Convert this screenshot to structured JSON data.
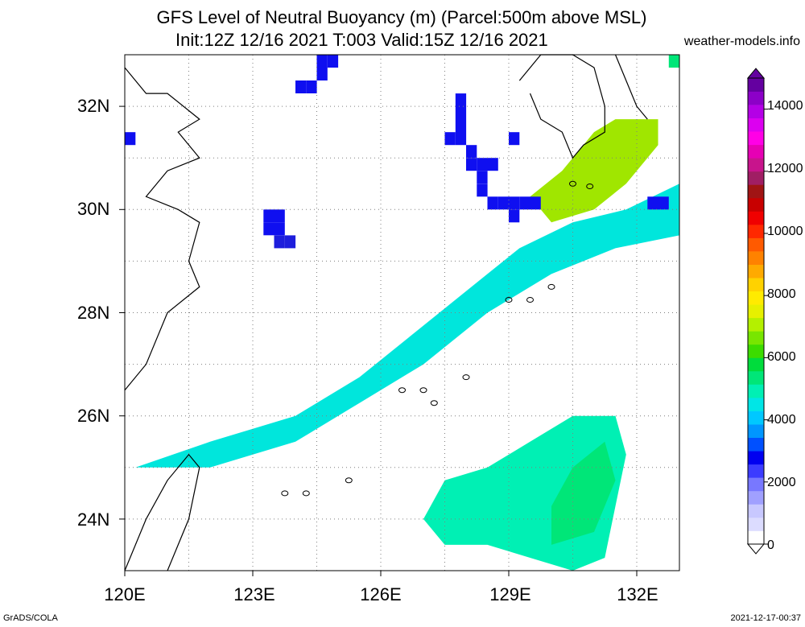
{
  "title_line1": "GFS Level of Neutral Buoyancy (m) (Parcel:500m above MSL)",
  "title_line2": "Init:12Z 12/16 2021 T:003 Valid:15Z 12/16 2021",
  "site": "weather-models.info",
  "footer_left": "GrADS/COLA",
  "footer_right": "2021-12-17-00:37",
  "lat_labels": [
    "32N",
    "30N",
    "28N",
    "26N",
    "24N"
  ],
  "lon_labels": [
    "120E",
    "123E",
    "126E",
    "129E",
    "132E"
  ],
  "colorbar": {
    "labels": [
      "14000",
      "12000",
      "10000",
      "8000",
      "6000",
      "4000",
      "2000",
      "0"
    ],
    "colors": [
      "#ffffff",
      "#dcdcff",
      "#c8c8ff",
      "#a0a0ff",
      "#7878ff",
      "#3c3cff",
      "#0000f0",
      "#0050ff",
      "#0096ff",
      "#00c8ff",
      "#00e6e6",
      "#00f0b4",
      "#00e678",
      "#00dc3c",
      "#3cdc00",
      "#78e600",
      "#b4f000",
      "#e6f000",
      "#ffeb00",
      "#ffd200",
      "#ffaa00",
      "#ff8200",
      "#ff5a00",
      "#ff2800",
      "#f00000",
      "#c80000",
      "#a01414",
      "#a01e64",
      "#c8148c",
      "#e600b4",
      "#ff00e6",
      "#dc00f0",
      "#b400e6",
      "#8c00c8",
      "#6400a0"
    ]
  },
  "map_data": {
    "region": {
      "lon_min": 120,
      "lon_max": 133,
      "lat_min": 23,
      "lat_max": 33
    },
    "colors": {
      "blue": "#0f0ff0",
      "deepblue": "#1e1edc",
      "lightblue": "#007dff",
      "sky": "#00b4ff",
      "cyan": "#00e6dc",
      "aqua": "#00f0b4",
      "green": "#00e678",
      "lime": "#3cdc00",
      "yellowgreen": "#a0e600",
      "outline": "#000000",
      "grid": "#7f7f7f"
    },
    "cells": [
      [
        "blue",
        124.5,
        32.75,
        1,
        1
      ],
      [
        "blue",
        124.25,
        32.25,
        1,
        1
      ],
      [
        "blue",
        124.0,
        32.25,
        1,
        1
      ],
      [
        "blue",
        124.75,
        32.75,
        1,
        1
      ],
      [
        "blue",
        124.5,
        32.5,
        1,
        1
      ],
      [
        "blue",
        127.75,
        32.0,
        1,
        4
      ],
      [
        "blue",
        127.5,
        31.25,
        1,
        1
      ],
      [
        "blue",
        128.0,
        31.0,
        1,
        1
      ],
      [
        "blue",
        128.0,
        30.75,
        1,
        1
      ],
      [
        "blue",
        128.25,
        30.75,
        1,
        1
      ],
      [
        "blue",
        128.5,
        30.75,
        1,
        1
      ],
      [
        "blue",
        128.25,
        30.5,
        1,
        1
      ],
      [
        "blue",
        128.25,
        30.25,
        1,
        1
      ],
      [
        "blue",
        128.5,
        30.0,
        1,
        1
      ],
      [
        "blue",
        128.75,
        30.0,
        1,
        1
      ],
      [
        "blue",
        129.0,
        30.0,
        1,
        1
      ],
      [
        "blue",
        129.25,
        30.0,
        1,
        1
      ],
      [
        "blue",
        129.5,
        30.0,
        1,
        1
      ],
      [
        "blue",
        129.0,
        31.25,
        1,
        1
      ],
      [
        "blue",
        120.0,
        31.25,
        1,
        1
      ],
      [
        "blue",
        123.25,
        29.75,
        1,
        1
      ],
      [
        "blue",
        123.5,
        29.75,
        1,
        1
      ],
      [
        "blue",
        123.25,
        29.5,
        1,
        1
      ],
      [
        "blue",
        123.5,
        29.5,
        1,
        1
      ],
      [
        "deepblue",
        123.75,
        29.25,
        1,
        1
      ],
      [
        "deepblue",
        123.5,
        29.25,
        1,
        1
      ],
      [
        "blue",
        129.0,
        29.75,
        1,
        1
      ],
      [
        "blue",
        132.25,
        30.0,
        1,
        1
      ],
      [
        "blue",
        132.5,
        30.0,
        1,
        1
      ],
      [
        "green",
        132.75,
        32.75,
        1,
        1
      ]
    ],
    "bands": [
      {
        "color": "cyan",
        "points": [
          [
            120.25,
            25.0
          ],
          [
            122.0,
            25.5
          ],
          [
            124.0,
            26.0
          ],
          [
            125.5,
            26.75
          ],
          [
            127.0,
            27.75
          ],
          [
            128.5,
            28.75
          ],
          [
            129.25,
            29.25
          ],
          [
            130.5,
            29.75
          ],
          [
            131.75,
            30.0
          ],
          [
            133.0,
            30.5
          ],
          [
            133.0,
            29.5
          ],
          [
            131.5,
            29.25
          ],
          [
            130.0,
            28.75
          ],
          [
            128.5,
            28.0
          ],
          [
            127.0,
            27.0
          ],
          [
            125.5,
            26.25
          ],
          [
            124.0,
            25.5
          ],
          [
            122.0,
            25.0
          ]
        ]
      },
      {
        "color": "yellowgreen",
        "points": [
          [
            129.5,
            30.25
          ],
          [
            130.25,
            30.75
          ],
          [
            131.0,
            31.5
          ],
          [
            131.5,
            31.75
          ],
          [
            132.5,
            31.75
          ],
          [
            132.5,
            31.25
          ],
          [
            131.75,
            30.5
          ],
          [
            131.0,
            30.0
          ],
          [
            130.0,
            29.75
          ]
        ]
      },
      {
        "color": "aqua",
        "points": [
          [
            127.0,
            24.0
          ],
          [
            127.5,
            24.75
          ],
          [
            128.5,
            25.0
          ],
          [
            129.5,
            25.5
          ],
          [
            130.5,
            26.0
          ],
          [
            131.5,
            26.0
          ],
          [
            131.75,
            25.25
          ],
          [
            131.5,
            24.25
          ],
          [
            131.25,
            23.25
          ],
          [
            130.5,
            23.0
          ],
          [
            129.5,
            23.25
          ],
          [
            128.5,
            23.5
          ],
          [
            127.5,
            23.5
          ]
        ]
      },
      {
        "color": "green",
        "points": [
          [
            130.0,
            24.25
          ],
          [
            130.5,
            25.0
          ],
          [
            131.25,
            25.5
          ],
          [
            131.5,
            24.75
          ],
          [
            131.0,
            23.75
          ],
          [
            130.0,
            23.5
          ]
        ]
      }
    ],
    "coast": [
      [
        [
          120.0,
          32.75
        ],
        [
          120.5,
          32.25
        ],
        [
          121.0,
          32.25
        ],
        [
          121.75,
          31.75
        ],
        [
          121.25,
          31.5
        ],
        [
          121.75,
          31.0
        ],
        [
          121.0,
          30.75
        ],
        [
          120.5,
          30.25
        ],
        [
          121.25,
          30.0
        ],
        [
          121.75,
          29.75
        ],
        [
          121.5,
          29.0
        ],
        [
          121.75,
          28.5
        ],
        [
          121.0,
          28.0
        ],
        [
          120.5,
          27.0
        ],
        [
          120.0,
          26.5
        ]
      ],
      [
        [
          120.0,
          23.0
        ],
        [
          120.5,
          24.0
        ],
        [
          121.0,
          24.75
        ],
        [
          121.5,
          25.25
        ],
        [
          121.75,
          25.0
        ],
        [
          121.5,
          24.0
        ],
        [
          121.0,
          23.0
        ]
      ],
      [
        [
          129.25,
          32.5
        ],
        [
          129.75,
          33.0
        ],
        [
          130.5,
          33.0
        ],
        [
          131.0,
          32.75
        ],
        [
          131.25,
          32.0
        ],
        [
          131.25,
          31.5
        ],
        [
          130.75,
          31.25
        ],
        [
          130.5,
          31.0
        ],
        [
          130.25,
          31.5
        ],
        [
          129.75,
          31.75
        ],
        [
          129.5,
          32.25
        ]
      ],
      [
        [
          131.5,
          33.0
        ],
        [
          131.75,
          32.5
        ],
        [
          132.0,
          32.0
        ],
        [
          132.25,
          31.75
        ]
      ]
    ],
    "islands": [
      [
        127.0,
        26.5
      ],
      [
        127.25,
        26.25
      ],
      [
        128.0,
        26.75
      ],
      [
        129.0,
        28.25
      ],
      [
        129.5,
        28.25
      ],
      [
        130.0,
        28.5
      ],
      [
        130.5,
        30.5
      ],
      [
        130.9,
        30.45
      ],
      [
        126.5,
        26.5
      ],
      [
        123.75,
        24.5
      ],
      [
        124.25,
        24.5
      ],
      [
        125.25,
        24.75
      ]
    ]
  }
}
